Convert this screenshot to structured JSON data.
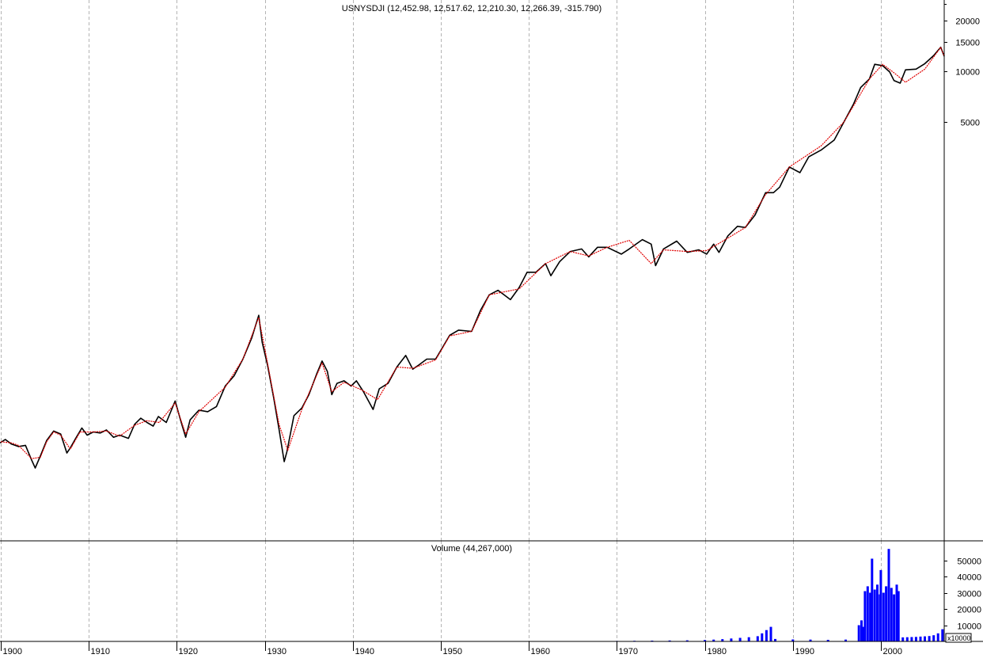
{
  "chart_data": [
    {
      "type": "line",
      "title": "USNYSDJI (12,452.98, 12,517.62, 12,210.30, 12,266.39, -315.790)",
      "scale": "log",
      "grid": "vertical-dashed",
      "y_ticks": [
        {
          "value": 20000,
          "label": "20000"
        },
        {
          "value": 15000,
          "label": "15000"
        },
        {
          "value": 10000,
          "label": "10000"
        },
        {
          "value": 5000,
          "label": "5000"
        }
      ],
      "x_ticks": [
        "1900",
        "1910",
        "1920",
        "1930",
        "1940",
        "1950",
        "1960",
        "1970",
        "1980",
        "1990",
        "2000"
      ],
      "x_range": [
        1899.9,
        2007.2
      ],
      "y_range": [
        38,
        30000
      ],
      "series": [
        {
          "color": "#000000",
          "x": [
            1899.9,
            1900.5,
            1901.2,
            1902,
            1902.8,
            1903.5,
            1903.9,
            1904.5,
            1905.2,
            1906,
            1906.8,
            1907.5,
            1907.9,
            1908.5,
            1909.2,
            1909.8,
            1910.5,
            1911.3,
            1912,
            1912.8,
            1913.5,
            1914.5,
            1915.2,
            1915.9,
            1916.6,
            1917.3,
            1917.9,
            1918.8,
            1919.8,
            1920.5,
            1921,
            1921.5,
            1922.5,
            1923.5,
            1924.5,
            1925.5,
            1926.5,
            1927.5,
            1928.5,
            1929.3,
            1929.7,
            1930.3,
            1931,
            1931.6,
            1932.2,
            1932.5,
            1933.3,
            1934.2,
            1935,
            1935.9,
            1936.5,
            1937.1,
            1937.6,
            1938.2,
            1939,
            1939.8,
            1940.4,
            1941.2,
            1942.3,
            1943,
            1944,
            1945,
            1946,
            1946.8,
            1947.5,
            1948.4,
            1949.4,
            1950,
            1951,
            1952,
            1953.5,
            1954.5,
            1955.5,
            1956.5,
            1957.9,
            1958.9,
            1959.8,
            1960.8,
            1961.9,
            1962.5,
            1963.5,
            1964.7,
            1966,
            1966.8,
            1967.8,
            1968.9,
            1970.5,
            1971.4,
            1972.9,
            1973.9,
            1974.4,
            1975.3,
            1976.8,
            1978,
            1979.3,
            1980.2,
            1981,
            1981.6,
            1982.6,
            1983.7,
            1984.6,
            1985.7,
            1986.9,
            1987.8,
            1988.5,
            1989.6,
            1990.8,
            1991.8,
            1993.2,
            1994.7,
            1995.8,
            1996.9,
            1997.7,
            1998.7,
            1999.3,
            2000.2,
            2001,
            2001.5,
            2002.2,
            2002.8,
            2004,
            2005,
            2006,
            2006.8,
            2007.2
          ],
          "y": [
            62,
            65,
            61,
            59,
            60,
            49,
            44,
            52,
            64,
            73,
            70,
            54,
            58,
            66,
            76,
            69,
            72,
            71,
            74,
            67,
            69,
            66,
            80,
            87,
            82,
            78,
            89,
            82,
            110,
            82,
            67,
            85,
            97,
            95,
            102,
            135,
            155,
            195,
            260,
            355,
            245,
            180,
            115,
            75,
            48,
            55,
            90,
            100,
            120,
            160,
            190,
            165,
            120,
            140,
            145,
            135,
            145,
            125,
            98,
            130,
            140,
            175,
            205,
            170,
            180,
            195,
            195,
            220,
            270,
            290,
            285,
            380,
            470,
            500,
            440,
            520,
            640,
            640,
            720,
            610,
            740,
            850,
            880,
            790,
            900,
            900,
            820,
            880,
            1000,
            940,
            700,
            880,
            980,
            840,
            870,
            820,
            940,
            840,
            1050,
            1200,
            1180,
            1400,
            1900,
            1900,
            2050,
            2700,
            2500,
            3100,
            3400,
            3900,
            5000,
            6400,
            8000,
            9000,
            11000,
            10800,
            9900,
            8800,
            8500,
            10200,
            10300,
            11100,
            12400,
            13900,
            12266
          ]
        },
        {
          "color": "#e00000",
          "x": [
            1900,
            1901.2,
            1902,
            1903.5,
            1904.5,
            1905.2,
            1906,
            1906.8,
            1907.9,
            1909,
            1910.5,
            1912,
            1913.5,
            1915.2,
            1916.6,
            1918,
            1919.8,
            1921,
            1922.5,
            1925.5,
            1927.5,
            1929.3,
            1930.3,
            1931.6,
            1932.6,
            1934.2,
            1936.5,
            1937.6,
            1939,
            1941,
            1942.8,
            1945,
            1946.8,
            1949.4,
            1951,
            1953.5,
            1955.5,
            1958.9,
            1961.9,
            1964.7,
            1966.8,
            1968.9,
            1971.4,
            1973.9,
            1975.3,
            1978,
            1980.2,
            1982.6,
            1984.6,
            1986.9,
            1989.6,
            1993.2,
            1995.8,
            1998.7,
            2000.2,
            2001.5,
            2002.8,
            2005,
            2006.8,
            2007.2
          ],
          "y": [
            63,
            62,
            60,
            50,
            51,
            63,
            72,
            69,
            57,
            72,
            72,
            73,
            68,
            79,
            84,
            82,
            107,
            70,
            95,
            133,
            195,
            345,
            185,
            80,
            56,
            98,
            185,
            125,
            142,
            128,
            112,
            175,
            172,
            193,
            268,
            285,
            470,
            510,
            720,
            850,
            800,
            900,
            990,
            720,
            870,
            850,
            860,
            1020,
            1180,
            1850,
            2700,
            3600,
            5000,
            9000,
            11000,
            9800,
            8600,
            10300,
            13900,
            12300
          ]
        }
      ]
    },
    {
      "type": "bar",
      "title": "Volume (44,267,000)",
      "unit_label": "x10000",
      "y_ticks": [
        {
          "value": 50000,
          "label": "50000"
        },
        {
          "value": 40000,
          "label": "40000"
        },
        {
          "value": 30000,
          "label": "30000"
        },
        {
          "value": 20000,
          "label": "20000"
        },
        {
          "value": 10000,
          "label": "10000"
        }
      ],
      "ylim": [
        0,
        62000
      ],
      "x_range": [
        1899.9,
        2007.2
      ],
      "color": "#0000ff",
      "x": [
        1970,
        1972,
        1974,
        1976,
        1978,
        1980,
        1981,
        1982,
        1983,
        1984,
        1985,
        1986,
        1986.5,
        1987,
        1987.5,
        1988,
        1990,
        1992,
        1994,
        1996,
        1997.5,
        1997.8,
        1998,
        1998.2,
        1998.5,
        1998.8,
        1999,
        1999.3,
        1999.6,
        1999.9,
        2000,
        2000.3,
        2000.6,
        2000.9,
        2001.2,
        2001.5,
        2001.8,
        2002,
        2002.5,
        2003,
        2003.5,
        2004,
        2004.5,
        2005,
        2005.5,
        2006,
        2006.5,
        2007
      ],
      "values": [
        300,
        400,
        500,
        600,
        700,
        900,
        1100,
        1400,
        1800,
        2200,
        2600,
        3200,
        5000,
        7000,
        9000,
        1500,
        1200,
        1100,
        1000,
        1100,
        10000,
        13000,
        9000,
        31000,
        34000,
        30000,
        51000,
        32000,
        35000,
        29000,
        44000,
        30000,
        34000,
        57000,
        33000,
        29000,
        35000,
        31000,
        2500,
        2600,
        2700,
        2800,
        3000,
        3100,
        3300,
        3800,
        5000,
        7500
      ]
    }
  ]
}
